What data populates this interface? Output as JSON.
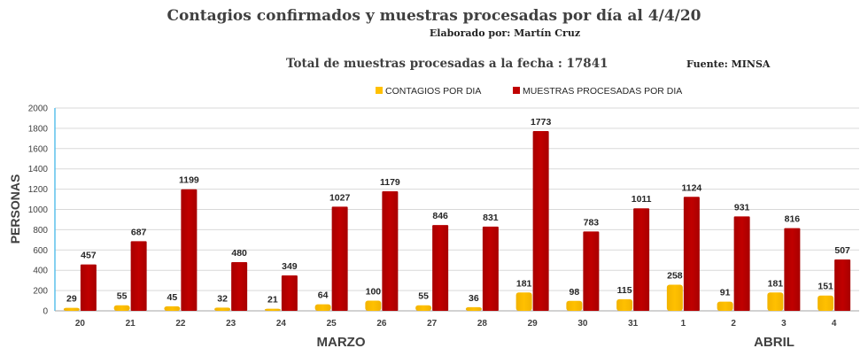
{
  "header": {
    "title": "Contagios confirmados y muestras procesadas por día al 4/4/20",
    "author": "Elaborado por: Martín Cruz",
    "total": "Total de muestras procesadas a la fecha : 17841",
    "source": "Fuente: MINSA"
  },
  "chart_data": {
    "type": "bar",
    "categories": [
      "20",
      "21",
      "22",
      "23",
      "24",
      "25",
      "26",
      "27",
      "28",
      "29",
      "30",
      "31",
      "1",
      "2",
      "3",
      "4"
    ],
    "month_labels": [
      "MARZO",
      "ABRIL"
    ],
    "series": [
      {
        "name": "CONTAGIOS POR DIA",
        "color": "#ffc000",
        "values": [
          29,
          55,
          45,
          32,
          21,
          64,
          100,
          55,
          36,
          181,
          98,
          115,
          258,
          91,
          181,
          151
        ]
      },
      {
        "name": "MUESTRAS PROCESADAS POR DIA",
        "color": "#c00000",
        "values": [
          457,
          687,
          1199,
          480,
          349,
          1027,
          1179,
          846,
          831,
          1773,
          783,
          1011,
          1124,
          931,
          816,
          507
        ]
      }
    ],
    "ylabel": "PERSONAS",
    "xlabel": "",
    "ylim": [
      0,
      2000
    ],
    "yticks": [
      0,
      200,
      400,
      600,
      800,
      1000,
      1200,
      1400,
      1600,
      1800,
      2000
    ],
    "grid": true,
    "legend": "top"
  }
}
